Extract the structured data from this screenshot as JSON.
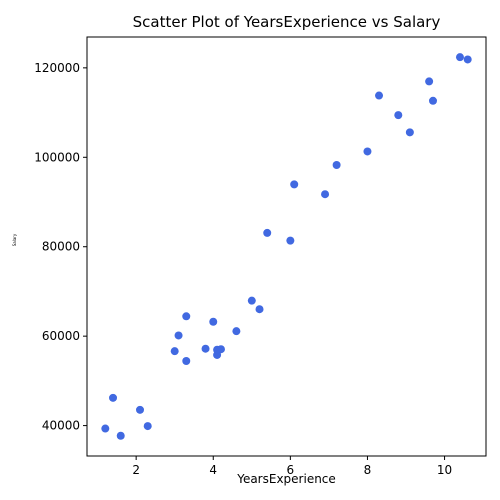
{
  "chart_data": {
    "type": "scatter",
    "title": "Scatter Plot of YearsExperience vs Salary",
    "xlabel": "YearsExperience",
    "ylabel": "Salary",
    "xlim": [
      0.725,
      11.075
    ],
    "ylim": [
      33200,
      126900
    ],
    "x_ticks": [
      2,
      4,
      6,
      8,
      10
    ],
    "y_ticks": [
      40000,
      60000,
      80000,
      100000,
      120000
    ],
    "grid": false,
    "legend": "none",
    "marker_color": "#4169e1",
    "series": [
      {
        "x": [
          1.2,
          1.4,
          1.6,
          2.1,
          2.3,
          3.0,
          3.1,
          3.3,
          3.3,
          3.8,
          4.0,
          4.1,
          4.1,
          4.2,
          4.6,
          5.0,
          5.2,
          5.4,
          6.0,
          6.1,
          6.9,
          7.2,
          8.0,
          8.3,
          8.8,
          9.1,
          9.6,
          9.7,
          10.4,
          10.6
        ],
        "y": [
          39344,
          46206,
          37732,
          43526,
          39892,
          56643,
          60151,
          54446,
          64446,
          57190,
          63219,
          55795,
          56958,
          57082,
          61112,
          67939,
          66030,
          83089,
          81364,
          93941,
          91739,
          98274,
          101303,
          113813,
          109432,
          105583,
          116970,
          112636,
          122392,
          121873
        ]
      }
    ]
  }
}
